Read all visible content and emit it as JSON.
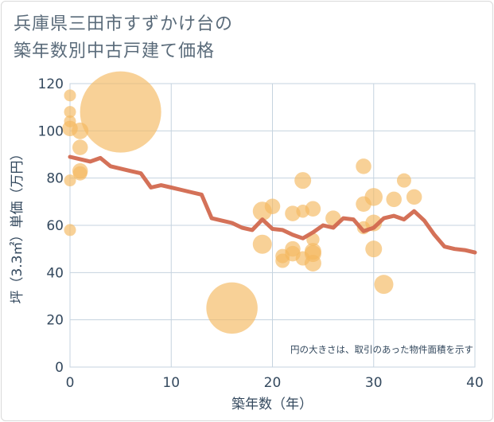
{
  "title": {
    "line1": "兵庫県三田市すずかけ台の",
    "line2": "築年数別中古戸建て価格"
  },
  "chart_data": {
    "type": "scatter",
    "xlabel": "築年数（年）",
    "ylabel": "坪（3.3㎡）単価（万円）",
    "xlim": [
      0,
      40
    ],
    "ylim": [
      0,
      120
    ],
    "xticks": [
      0,
      10,
      20,
      30,
      40
    ],
    "yticks": [
      0,
      20,
      40,
      60,
      80,
      100,
      120
    ],
    "grid": true,
    "annotation": "円の大きさは、取引のあった物件面積を示す",
    "colors": {
      "bubble": "#f4b95f",
      "line": "#d2694f",
      "grid": "#c5d3df",
      "text": "#34495e"
    },
    "points": [
      {
        "x": 0,
        "y": 115,
        "size": 1
      },
      {
        "x": 0,
        "y": 108,
        "size": 1
      },
      {
        "x": 0,
        "y": 104,
        "size": 1
      },
      {
        "x": 0,
        "y": 101,
        "size": 1.3
      },
      {
        "x": 0,
        "y": 79,
        "size": 1
      },
      {
        "x": 0,
        "y": 58,
        "size": 1
      },
      {
        "x": 1,
        "y": 100,
        "size": 1.4
      },
      {
        "x": 1,
        "y": 93,
        "size": 1.3
      },
      {
        "x": 1,
        "y": 83,
        "size": 1.3
      },
      {
        "x": 1,
        "y": 82,
        "size": 1.2
      },
      {
        "x": 5,
        "y": 108,
        "size": 6.8
      },
      {
        "x": 16,
        "y": 25,
        "size": 4.3
      },
      {
        "x": 19,
        "y": 66,
        "size": 1.6
      },
      {
        "x": 19,
        "y": 52,
        "size": 1.6
      },
      {
        "x": 20,
        "y": 68,
        "size": 1.3
      },
      {
        "x": 21,
        "y": 47,
        "size": 1.2
      },
      {
        "x": 21,
        "y": 45,
        "size": 1.2
      },
      {
        "x": 22,
        "y": 65,
        "size": 1.3
      },
      {
        "x": 22,
        "y": 50,
        "size": 1.3
      },
      {
        "x": 22,
        "y": 48,
        "size": 1.3
      },
      {
        "x": 23,
        "y": 79,
        "size": 1.4
      },
      {
        "x": 23,
        "y": 66,
        "size": 1.1
      },
      {
        "x": 23,
        "y": 46,
        "size": 1.2
      },
      {
        "x": 24,
        "y": 67,
        "size": 1.3
      },
      {
        "x": 24,
        "y": 54,
        "size": 1.1
      },
      {
        "x": 24,
        "y": 49,
        "size": 1.4
      },
      {
        "x": 24,
        "y": 48,
        "size": 1.4
      },
      {
        "x": 24,
        "y": 44,
        "size": 1.4
      },
      {
        "x": 26,
        "y": 63,
        "size": 1.3
      },
      {
        "x": 29,
        "y": 85,
        "size": 1.3
      },
      {
        "x": 29,
        "y": 69,
        "size": 1.3
      },
      {
        "x": 29,
        "y": 59,
        "size": 1.1
      },
      {
        "x": 30,
        "y": 72,
        "size": 1.5
      },
      {
        "x": 30,
        "y": 61,
        "size": 1.4
      },
      {
        "x": 30,
        "y": 50,
        "size": 1.4
      },
      {
        "x": 31,
        "y": 35,
        "size": 1.6
      },
      {
        "x": 32,
        "y": 71,
        "size": 1.3
      },
      {
        "x": 33,
        "y": 79,
        "size": 1.2
      },
      {
        "x": 34,
        "y": 72,
        "size": 1.3
      }
    ],
    "trend": {
      "x": [
        0,
        1,
        2,
        3,
        4,
        5,
        6,
        7,
        8,
        9,
        10,
        11,
        12,
        13,
        14,
        15,
        16,
        17,
        18,
        19,
        20,
        21,
        22,
        23,
        24,
        25,
        26,
        27,
        28,
        29,
        30,
        31,
        32,
        33,
        34,
        35,
        36,
        37,
        38,
        39,
        40
      ],
      "y": [
        89,
        88,
        87,
        88.5,
        85,
        84,
        83,
        82,
        76,
        77,
        76,
        75,
        74,
        73,
        63,
        62,
        61,
        59,
        58,
        62.5,
        58.5,
        58,
        56,
        54.5,
        57,
        60,
        59,
        63,
        62.5,
        57.5,
        59,
        63,
        64,
        62.5,
        66,
        62,
        56,
        51,
        50,
        49.5,
        48.5
      ]
    }
  }
}
